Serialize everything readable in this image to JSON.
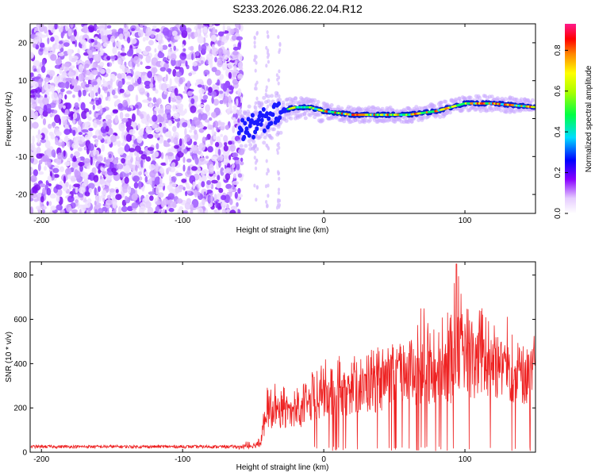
{
  "title": "S233.2026.086.22.04.R12",
  "chart_data": [
    {
      "type": "heatmap",
      "name": "spectrogram",
      "xlabel": "Height of straight line (km)",
      "ylabel": "Frequency (Hz)",
      "xlim": [
        -208,
        150
      ],
      "ylim": [
        -25,
        25
      ],
      "xticks": [
        -200,
        -100,
        0,
        100
      ],
      "yticks": [
        -20,
        -10,
        0,
        10,
        20
      ],
      "noise_region_x": [
        -208,
        -58
      ],
      "signal_track": {
        "x": [
          -58,
          -50,
          -40,
          -30,
          -20,
          -10,
          0,
          20,
          40,
          60,
          80,
          100,
          120,
          150
        ],
        "frequency": [
          -3,
          -2,
          0,
          2,
          3,
          3,
          2,
          1,
          1,
          1,
          2,
          4,
          4,
          3
        ]
      },
      "colorbar": {
        "label": "Normalized spectral amplitude",
        "ticks": [
          0.0,
          0.2,
          0.4,
          0.6,
          0.8
        ],
        "tick_labels": [
          "0.0",
          "0.2",
          "0.4",
          "0.6",
          "0.8"
        ],
        "range": [
          0,
          0.93
        ],
        "colors": [
          "#ffffff",
          "#8800ff",
          "#0000ff",
          "#00ddff",
          "#00ff00",
          "#ffff00",
          "#ff8800",
          "#ff0000",
          "#ff1a8c"
        ]
      }
    },
    {
      "type": "line",
      "name": "snr",
      "xlabel": "Height of straight line (km)",
      "ylabel": "SNR (10 * v/v)",
      "xlim": [
        -208,
        150
      ],
      "ylim": [
        0,
        860
      ],
      "xticks": [
        -200,
        -100,
        0,
        100
      ],
      "yticks": [
        0,
        200,
        400,
        600,
        800
      ],
      "color": "#ee2222",
      "envelope": {
        "x": [
          -208,
          -60,
          -45,
          -40,
          -30,
          -20,
          -10,
          0,
          20,
          40,
          60,
          70,
          80,
          90,
          94,
          100,
          110,
          120,
          130,
          140,
          150
        ],
        "mean": [
          20,
          22,
          40,
          180,
          200,
          180,
          230,
          260,
          300,
          330,
          380,
          390,
          360,
          400,
          560,
          420,
          440,
          430,
          400,
          380,
          390
        ],
        "peak": [
          35,
          35,
          80,
          300,
          320,
          300,
          350,
          420,
          450,
          480,
          500,
          740,
          600,
          650,
          850,
          650,
          680,
          600,
          620,
          600,
          620
        ]
      }
    }
  ]
}
